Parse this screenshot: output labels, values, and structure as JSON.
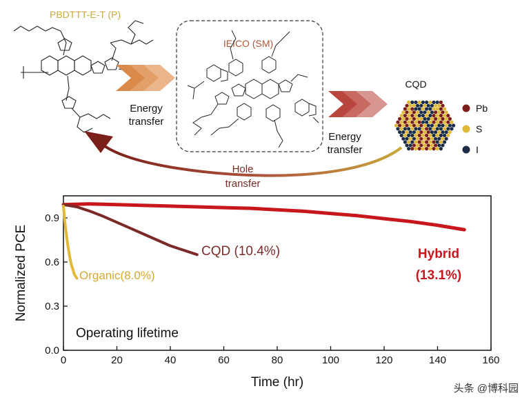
{
  "schematic": {
    "polymer_label": "PBDTTT-E-T (P)",
    "small_molecule_label": "IEICO (SM)",
    "cqd_label": "CQD",
    "energy_transfer_1": [
      "Energy",
      "transfer"
    ],
    "energy_transfer_2": [
      "Energy",
      "transfer"
    ],
    "hole_transfer": [
      "Hole",
      "transfer"
    ],
    "legend": [
      {
        "label": "Pb",
        "color": "#7a1f1a"
      },
      {
        "label": "S",
        "color": "#e0b83a"
      },
      {
        "label": "I",
        "color": "#1c2d48"
      }
    ],
    "colors": {
      "polymer_text": "#c8a93a",
      "sm_text": "#b2553a",
      "arrow_orange": "#d98a4a",
      "arrow_red": "#b8453e",
      "hole_arrow": "#8b2a24"
    }
  },
  "chart_data": {
    "type": "line",
    "xlabel": "Time (hr)",
    "ylabel": "Normalized PCE",
    "xlim": [
      0,
      160
    ],
    "ylim": [
      0,
      1.05
    ],
    "xticks": [
      "0",
      "20",
      "40",
      "60",
      "80",
      "100",
      "120",
      "140",
      "160"
    ],
    "yticks": [
      "0.0",
      "0.3",
      "0.6",
      "0.9"
    ],
    "annotation": "Operating lifetime",
    "series": [
      {
        "name": "Hybrid",
        "label_lines": [
          "Hybrid",
          "(13.1%)"
        ],
        "color": "#c8161d",
        "x": [
          0,
          10,
          20,
          30,
          40,
          50,
          60,
          70,
          80,
          90,
          100,
          110,
          120,
          130,
          140,
          150
        ],
        "y": [
          0.99,
          0.995,
          0.99,
          0.985,
          0.98,
          0.975,
          0.97,
          0.965,
          0.955,
          0.945,
          0.93,
          0.915,
          0.895,
          0.875,
          0.85,
          0.82
        ]
      },
      {
        "name": "CQD (10.4%)",
        "label_lines": [
          "CQD (10.4%)"
        ],
        "color": "#7b2a27",
        "x": [
          0,
          5,
          10,
          15,
          20,
          25,
          30,
          35,
          40,
          45,
          50
        ],
        "y": [
          0.99,
          0.975,
          0.945,
          0.91,
          0.87,
          0.83,
          0.79,
          0.75,
          0.71,
          0.68,
          0.65
        ]
      },
      {
        "name": "Organic(8.0%)",
        "label_lines": [
          "Organic(8.0%)"
        ],
        "color": "#e0b83a",
        "x": [
          0,
          0.5,
          1,
          1.5,
          2,
          2.5,
          3,
          3.5,
          4,
          4.5,
          5
        ],
        "y": [
          0.98,
          0.88,
          0.8,
          0.73,
          0.67,
          0.62,
          0.58,
          0.55,
          0.52,
          0.505,
          0.49
        ]
      }
    ]
  },
  "watermark": "头条 @博科园"
}
